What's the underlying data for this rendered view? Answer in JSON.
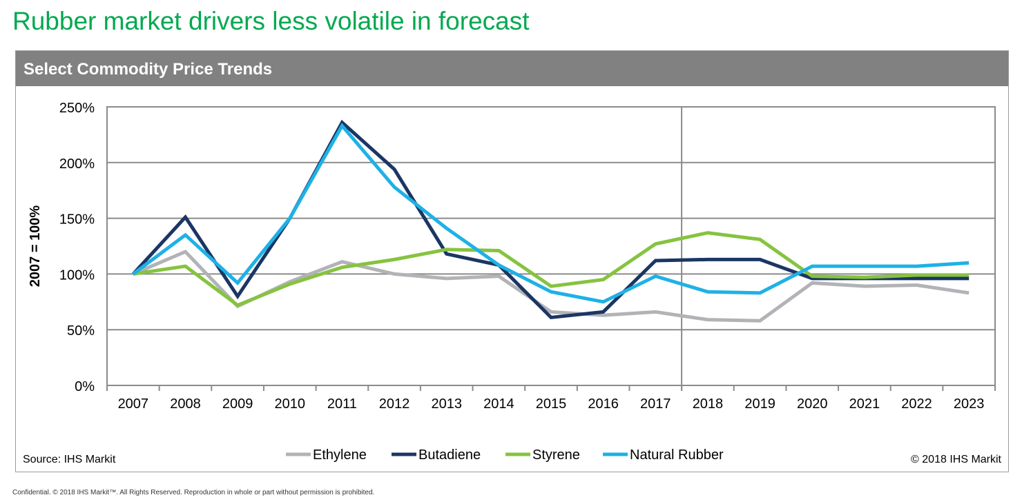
{
  "title": "Rubber market drivers less volatile in forecast",
  "panel_title": "Select Commodity Price Trends",
  "source": "Source: IHS Markit",
  "copyright": "© 2018 IHS Markit",
  "footer": "Confidential. © 2018 IHS Markit™. All Rights Reserved. Reproduction in whole or part without permission is prohibited.",
  "chart_data": {
    "type": "line",
    "ylabel": "2007 = 100%",
    "xlabel": "",
    "ylim": [
      0,
      250
    ],
    "yticks": [
      "0%",
      "50%",
      "100%",
      "150%",
      "200%",
      "250%"
    ],
    "grid": true,
    "legend": "bottom",
    "forecast_divider_between": [
      "2017",
      "2018"
    ],
    "categories": [
      "2007",
      "2008",
      "2009",
      "2010",
      "2011",
      "2012",
      "2013",
      "2014",
      "2015",
      "2016",
      "2017",
      "2018",
      "2019",
      "2020",
      "2021",
      "2022",
      "2023"
    ],
    "series": [
      {
        "name": "Ethylene",
        "color": "#b1b3b6",
        "values": [
          100,
          120,
          71,
          93,
          111,
          100,
          96,
          98,
          66,
          63,
          66,
          59,
          58,
          92,
          89,
          90,
          83
        ]
      },
      {
        "name": "Butadiene",
        "color": "#1b3664",
        "values": [
          100,
          151,
          80,
          150,
          236,
          194,
          118,
          108,
          61,
          66,
          112,
          113,
          113,
          96,
          96,
          96,
          96
        ]
      },
      {
        "name": "Styrene",
        "color": "#86c340",
        "values": [
          100,
          107,
          72,
          91,
          106,
          113,
          122,
          121,
          89,
          95,
          127,
          137,
          131,
          98,
          97,
          99,
          99
        ]
      },
      {
        "name": "Natural Rubber",
        "color": "#1eb1e6",
        "values": [
          100,
          135,
          92,
          150,
          233,
          178,
          141,
          108,
          84,
          75,
          98,
          84,
          83,
          107,
          107,
          107,
          110
        ]
      }
    ]
  }
}
